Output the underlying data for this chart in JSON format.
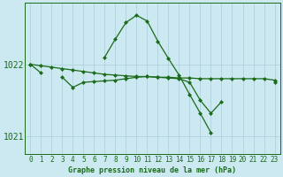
{
  "title": "Graphe pression niveau de la mer (hPa)",
  "bg_color": "#cce8f0",
  "grid_color": "#aaccdd",
  "line_color": "#1a6b1a",
  "hours": [
    0,
    1,
    2,
    3,
    4,
    5,
    6,
    7,
    8,
    9,
    10,
    11,
    12,
    13,
    14,
    15,
    16,
    17,
    18,
    19,
    20,
    21,
    22,
    23
  ],
  "s1": [
    1022.0,
    1021.88,
    null,
    null,
    null,
    null,
    null,
    1022.1,
    1022.35,
    1022.58,
    1022.68,
    1022.6,
    1022.32,
    1022.08,
    1021.85,
    1021.58,
    1021.32,
    1021.05,
    null,
    null,
    null,
    null,
    null,
    null
  ],
  "s2": [
    1022.0,
    1021.98,
    1021.96,
    1021.94,
    1021.92,
    1021.9,
    1021.88,
    1021.86,
    1021.85,
    1021.84,
    1021.83,
    1021.83,
    1021.82,
    1021.82,
    1021.81,
    1021.81,
    1021.8,
    1021.8,
    1021.8,
    1021.8,
    1021.8,
    1021.8,
    1021.8,
    1021.78
  ],
  "s3": [
    null,
    null,
    null,
    1021.82,
    1021.68,
    1021.75,
    1021.76,
    1021.77,
    1021.78,
    1021.8,
    1021.82,
    1021.83,
    1021.82,
    1021.81,
    1021.8,
    1021.75,
    1021.5,
    1021.32,
    1021.48,
    null,
    null,
    null,
    null,
    1021.75
  ],
  "ylim": [
    1020.75,
    1022.85
  ],
  "yticks": [
    1021,
    1022
  ],
  "xlim": [
    -0.5,
    23.5
  ],
  "figsize": [
    3.2,
    2.0
  ],
  "dpi": 100,
  "marker_size": 2.5,
  "line_width": 0.9,
  "xlabel_fontsize": 6.0,
  "tick_fontsize": 5.5,
  "ytick_fontsize": 7.0
}
